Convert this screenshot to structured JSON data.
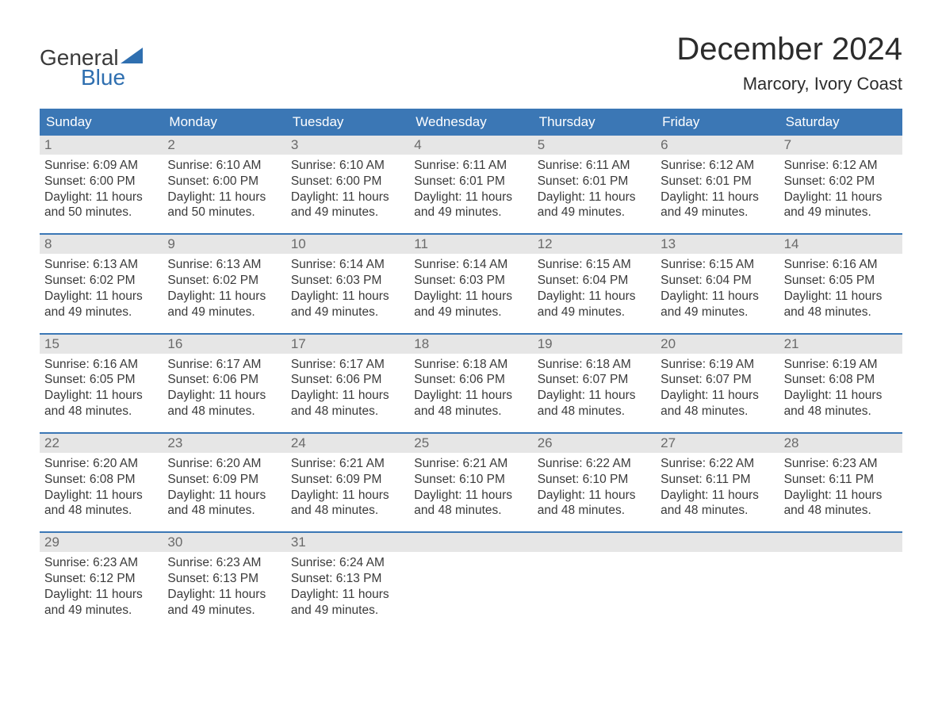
{
  "brand": {
    "word1": "General",
    "word2": "Blue",
    "word1_color": "#3a3a3a",
    "word2_color": "#2f6fb0",
    "icon_color": "#2f6fb0"
  },
  "header": {
    "month_title": "December 2024",
    "location": "Marcory, Ivory Coast"
  },
  "colors": {
    "header_bar": "#3b77b5",
    "header_text": "#ffffff",
    "week_divider": "#3b77b5",
    "day_number_bg": "#e6e6e6",
    "day_number_color": "#6a6a6a",
    "body_text": "#3a3a3a",
    "page_bg": "#ffffff"
  },
  "weekdays": [
    "Sunday",
    "Monday",
    "Tuesday",
    "Wednesday",
    "Thursday",
    "Friday",
    "Saturday"
  ],
  "calendar": {
    "type": "table",
    "month": "December",
    "year": 2024,
    "first_weekday_index": 0,
    "days": [
      {
        "n": 1,
        "sunrise": "6:09 AM",
        "sunset": "6:00 PM",
        "daylight": "11 hours and 50 minutes."
      },
      {
        "n": 2,
        "sunrise": "6:10 AM",
        "sunset": "6:00 PM",
        "daylight": "11 hours and 50 minutes."
      },
      {
        "n": 3,
        "sunrise": "6:10 AM",
        "sunset": "6:00 PM",
        "daylight": "11 hours and 49 minutes."
      },
      {
        "n": 4,
        "sunrise": "6:11 AM",
        "sunset": "6:01 PM",
        "daylight": "11 hours and 49 minutes."
      },
      {
        "n": 5,
        "sunrise": "6:11 AM",
        "sunset": "6:01 PM",
        "daylight": "11 hours and 49 minutes."
      },
      {
        "n": 6,
        "sunrise": "6:12 AM",
        "sunset": "6:01 PM",
        "daylight": "11 hours and 49 minutes."
      },
      {
        "n": 7,
        "sunrise": "6:12 AM",
        "sunset": "6:02 PM",
        "daylight": "11 hours and 49 minutes."
      },
      {
        "n": 8,
        "sunrise": "6:13 AM",
        "sunset": "6:02 PM",
        "daylight": "11 hours and 49 minutes."
      },
      {
        "n": 9,
        "sunrise": "6:13 AM",
        "sunset": "6:02 PM",
        "daylight": "11 hours and 49 minutes."
      },
      {
        "n": 10,
        "sunrise": "6:14 AM",
        "sunset": "6:03 PM",
        "daylight": "11 hours and 49 minutes."
      },
      {
        "n": 11,
        "sunrise": "6:14 AM",
        "sunset": "6:03 PM",
        "daylight": "11 hours and 49 minutes."
      },
      {
        "n": 12,
        "sunrise": "6:15 AM",
        "sunset": "6:04 PM",
        "daylight": "11 hours and 49 minutes."
      },
      {
        "n": 13,
        "sunrise": "6:15 AM",
        "sunset": "6:04 PM",
        "daylight": "11 hours and 49 minutes."
      },
      {
        "n": 14,
        "sunrise": "6:16 AM",
        "sunset": "6:05 PM",
        "daylight": "11 hours and 48 minutes."
      },
      {
        "n": 15,
        "sunrise": "6:16 AM",
        "sunset": "6:05 PM",
        "daylight": "11 hours and 48 minutes."
      },
      {
        "n": 16,
        "sunrise": "6:17 AM",
        "sunset": "6:06 PM",
        "daylight": "11 hours and 48 minutes."
      },
      {
        "n": 17,
        "sunrise": "6:17 AM",
        "sunset": "6:06 PM",
        "daylight": "11 hours and 48 minutes."
      },
      {
        "n": 18,
        "sunrise": "6:18 AM",
        "sunset": "6:06 PM",
        "daylight": "11 hours and 48 minutes."
      },
      {
        "n": 19,
        "sunrise": "6:18 AM",
        "sunset": "6:07 PM",
        "daylight": "11 hours and 48 minutes."
      },
      {
        "n": 20,
        "sunrise": "6:19 AM",
        "sunset": "6:07 PM",
        "daylight": "11 hours and 48 minutes."
      },
      {
        "n": 21,
        "sunrise": "6:19 AM",
        "sunset": "6:08 PM",
        "daylight": "11 hours and 48 minutes."
      },
      {
        "n": 22,
        "sunrise": "6:20 AM",
        "sunset": "6:08 PM",
        "daylight": "11 hours and 48 minutes."
      },
      {
        "n": 23,
        "sunrise": "6:20 AM",
        "sunset": "6:09 PM",
        "daylight": "11 hours and 48 minutes."
      },
      {
        "n": 24,
        "sunrise": "6:21 AM",
        "sunset": "6:09 PM",
        "daylight": "11 hours and 48 minutes."
      },
      {
        "n": 25,
        "sunrise": "6:21 AM",
        "sunset": "6:10 PM",
        "daylight": "11 hours and 48 minutes."
      },
      {
        "n": 26,
        "sunrise": "6:22 AM",
        "sunset": "6:10 PM",
        "daylight": "11 hours and 48 minutes."
      },
      {
        "n": 27,
        "sunrise": "6:22 AM",
        "sunset": "6:11 PM",
        "daylight": "11 hours and 48 minutes."
      },
      {
        "n": 28,
        "sunrise": "6:23 AM",
        "sunset": "6:11 PM",
        "daylight": "11 hours and 48 minutes."
      },
      {
        "n": 29,
        "sunrise": "6:23 AM",
        "sunset": "6:12 PM",
        "daylight": "11 hours and 49 minutes."
      },
      {
        "n": 30,
        "sunrise": "6:23 AM",
        "sunset": "6:13 PM",
        "daylight": "11 hours and 49 minutes."
      },
      {
        "n": 31,
        "sunrise": "6:24 AM",
        "sunset": "6:13 PM",
        "daylight": "11 hours and 49 minutes."
      }
    ],
    "labels": {
      "sunrise_prefix": "Sunrise: ",
      "sunset_prefix": "Sunset: ",
      "daylight_prefix": "Daylight: "
    }
  }
}
